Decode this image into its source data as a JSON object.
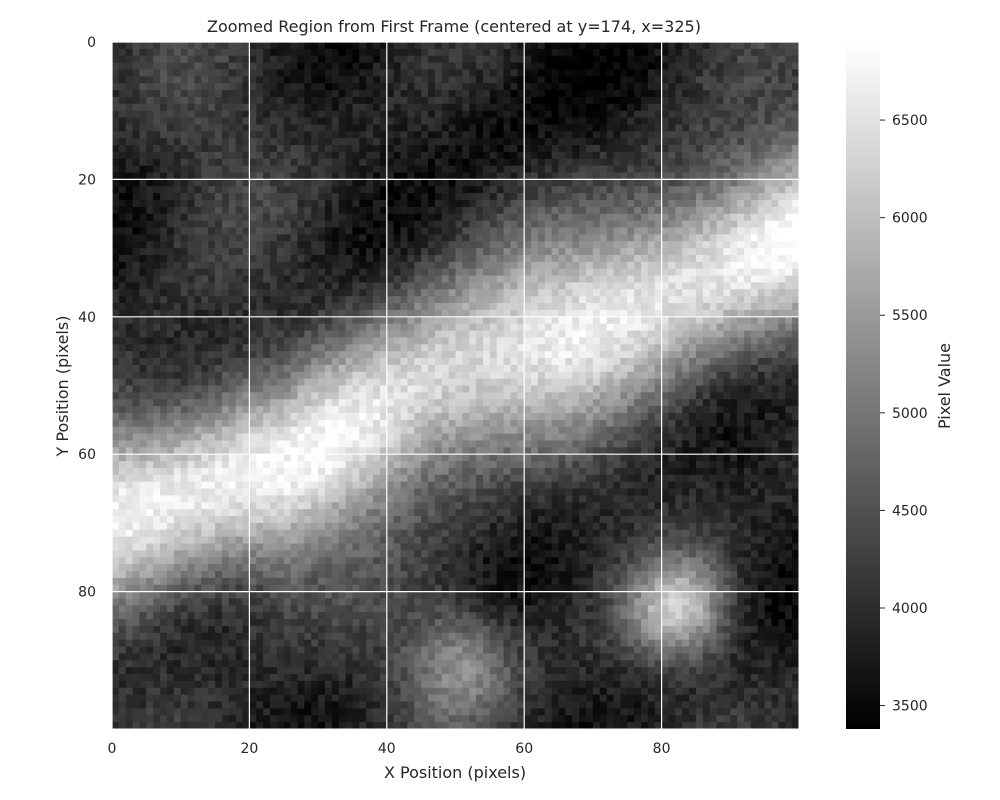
{
  "chart_data": {
    "type": "heatmap",
    "title": "Zoomed Region from First Frame (centered at y=174, x=325)",
    "xlabel": "X Position (pixels)",
    "ylabel": "Y Position (pixels)",
    "xlim": [
      0,
      99
    ],
    "ylim": [
      99,
      0
    ],
    "x_ticks": [
      "0",
      "20",
      "40",
      "60",
      "80"
    ],
    "y_ticks": [
      "0",
      "20",
      "40",
      "60",
      "80"
    ],
    "grid": true,
    "colormap": "gray",
    "colorbar": {
      "label": "Pixel Value",
      "range": [
        3380,
        6900
      ],
      "ticks": [
        "3500",
        "4000",
        "4500",
        "5000",
        "5500",
        "6000",
        "6500"
      ]
    },
    "features": [
      {
        "description": "bright diagonal band",
        "points": [
          [
            0,
            67
          ],
          [
            25,
            63
          ],
          [
            45,
            50
          ],
          [
            65,
            42
          ],
          [
            85,
            33
          ],
          [
            99,
            28
          ]
        ],
        "peak_value": 6850
      },
      {
        "description": "bright spot",
        "x": 82,
        "y": 82,
        "value": 6300
      },
      {
        "description": "bright spot",
        "x": 50,
        "y": 90,
        "value": 5600
      }
    ]
  }
}
